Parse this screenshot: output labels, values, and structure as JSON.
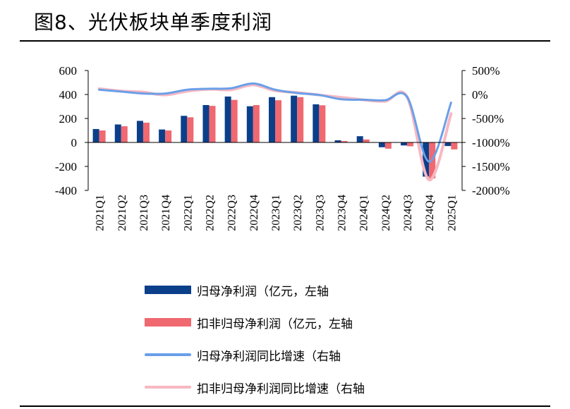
{
  "title": "图8、光伏板块单季度利润",
  "chart_data": {
    "type": "bar",
    "categories": [
      "2021Q1",
      "2021Q2",
      "2021Q3",
      "2021Q4",
      "2022Q1",
      "2022Q2",
      "2022Q3",
      "2022Q4",
      "2023Q1",
      "2023Q2",
      "2023Q3",
      "2023Q4",
      "2024Q1",
      "2024Q2",
      "2024Q3",
      "2024Q4",
      "2025Q1"
    ],
    "left_axis": {
      "ylim": [
        -400,
        600
      ],
      "ticks": [
        "600",
        "400",
        "200",
        "0",
        "-200",
        "-400"
      ]
    },
    "right_axis": {
      "ylim": [
        -2000,
        500
      ],
      "ticks": [
        "500%",
        "0%",
        "-500%",
        "-1000%",
        "-1500%",
        "-2000%"
      ]
    },
    "series": [
      {
        "name": "归母净利润（亿元，左轴",
        "axis": "left",
        "kind": "bar",
        "color": "#0b3f8a",
        "values": [
          112,
          150,
          180,
          108,
          222,
          312,
          383,
          302,
          378,
          390,
          318,
          18,
          52,
          -40,
          -25,
          -285,
          -30
        ]
      },
      {
        "name": "扣非归母净利润（亿元，左轴",
        "axis": "left",
        "kind": "bar",
        "color": "#f06870",
        "values": [
          100,
          135,
          165,
          100,
          210,
          305,
          355,
          312,
          352,
          378,
          310,
          12,
          25,
          -52,
          -32,
          -300,
          -58
        ]
      },
      {
        "name": "归母净利润同比增速（右轴",
        "axis": "right",
        "kind": "line",
        "color": "#6a9fe8",
        "values": [
          100,
          60,
          20,
          20,
          100,
          120,
          130,
          230,
          100,
          30,
          -10,
          -100,
          -110,
          -120,
          -50,
          -1400,
          -170
        ]
      },
      {
        "name": "扣非归母净利润同比增速（右轴",
        "axis": "right",
        "kind": "line",
        "color": "#f7b8c2",
        "values": [
          120,
          70,
          50,
          -10,
          70,
          110,
          100,
          200,
          80,
          40,
          -10,
          -60,
          -110,
          -140,
          -50,
          -1780,
          -400
        ]
      }
    ]
  }
}
